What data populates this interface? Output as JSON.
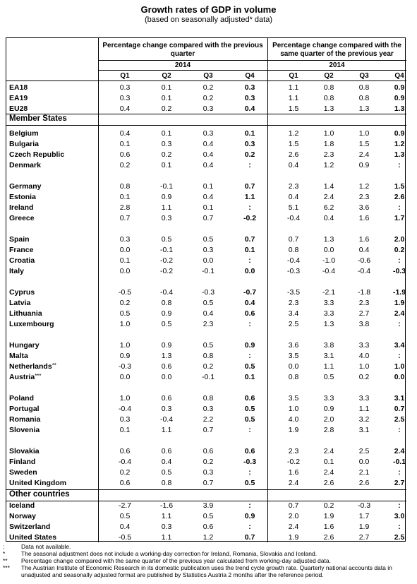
{
  "title": "Growth rates of GDP in volume",
  "subtitle": "(based on seasonally adjusted* data)",
  "header": {
    "group1": "Percentage change compared with the previous quarter",
    "group2": "Percentage change compared with the same quarter of the previous year",
    "year": "2014",
    "quarters": [
      "Q1",
      "Q2",
      "Q3",
      "Q4"
    ]
  },
  "sections": [
    {
      "title": "",
      "groups": [
        [
          {
            "name": "EA18",
            "qq": [
              "0.3",
              "0.1",
              "0.2",
              "0.3"
            ],
            "yy": [
              "1.1",
              "0.8",
              "0.8",
              "0.9"
            ]
          },
          {
            "name": "EA19",
            "qq": [
              "0.3",
              "0.1",
              "0.2",
              "0.3"
            ],
            "yy": [
              "1.1",
              "0.8",
              "0.8",
              "0.9"
            ]
          },
          {
            "name": "EU28",
            "qq": [
              "0.4",
              "0.2",
              "0.3",
              "0.4"
            ],
            "yy": [
              "1.5",
              "1.3",
              "1.3",
              "1.3"
            ]
          }
        ]
      ]
    },
    {
      "title": "Member States",
      "groups": [
        [
          {
            "name": "Belgium",
            "qq": [
              "0.4",
              "0.1",
              "0.3",
              "0.1"
            ],
            "yy": [
              "1.2",
              "1.0",
              "1.0",
              "0.9"
            ]
          },
          {
            "name": "Bulgaria",
            "qq": [
              "0.1",
              "0.3",
              "0.4",
              "0.3"
            ],
            "yy": [
              "1.5",
              "1.8",
              "1.5",
              "1.2"
            ]
          },
          {
            "name": "Czech Republic",
            "qq": [
              "0.6",
              "0.2",
              "0.4",
              "0.2"
            ],
            "yy": [
              "2.6",
              "2.3",
              "2.4",
              "1.3"
            ]
          },
          {
            "name": "Denmark",
            "qq": [
              "0.2",
              "0.1",
              "0.4",
              ":"
            ],
            "yy": [
              "0.4",
              "1.2",
              "0.9",
              ":"
            ]
          }
        ],
        [
          {
            "name": "Germany",
            "qq": [
              "0.8",
              "-0.1",
              "0.1",
              "0.7"
            ],
            "yy": [
              "2.3",
              "1.4",
              "1.2",
              "1.5"
            ]
          },
          {
            "name": "Estonia",
            "qq": [
              "0.1",
              "0.9",
              "0.4",
              "1.1"
            ],
            "yy": [
              "0.4",
              "2.4",
              "2.3",
              "2.6"
            ]
          },
          {
            "name": "Ireland",
            "qq": [
              "2.8",
              "1.1",
              "0.1",
              ":"
            ],
            "yy": [
              "5.1",
              "6.2",
              "3.6",
              ":"
            ]
          },
          {
            "name": "Greece",
            "qq": [
              "0.7",
              "0.3",
              "0.7",
              "-0.2"
            ],
            "yy": [
              "-0.4",
              "0.4",
              "1.6",
              "1.7"
            ]
          }
        ],
        [
          {
            "name": "Spain",
            "qq": [
              "0.3",
              "0.5",
              "0.5",
              "0.7"
            ],
            "yy": [
              "0.7",
              "1.3",
              "1.6",
              "2.0"
            ]
          },
          {
            "name": "France",
            "qq": [
              "0.0",
              "-0.1",
              "0.3",
              "0.1"
            ],
            "yy": [
              "0.8",
              "0.0",
              "0.4",
              "0.2"
            ]
          },
          {
            "name": "Croatia",
            "qq": [
              "0.1",
              "-0.2",
              "0.0",
              ":"
            ],
            "yy": [
              "-0.4",
              "-1.0",
              "-0.6",
              ":"
            ]
          },
          {
            "name": "Italy",
            "qq": [
              "0.0",
              "-0.2",
              "-0.1",
              "0.0"
            ],
            "yy": [
              "-0.3",
              "-0.4",
              "-0.4",
              "-0.3"
            ]
          }
        ],
        [
          {
            "name": "Cyprus",
            "qq": [
              "-0.5",
              "-0.4",
              "-0.3",
              "-0.7"
            ],
            "yy": [
              "-3.5",
              "-2.1",
              "-1.8",
              "-1.9"
            ]
          },
          {
            "name": "Latvia",
            "qq": [
              "0.2",
              "0.8",
              "0.5",
              "0.4"
            ],
            "yy": [
              "2.3",
              "3.3",
              "2.3",
              "1.9"
            ]
          },
          {
            "name": "Lithuania",
            "qq": [
              "0.5",
              "0.9",
              "0.4",
              "0.6"
            ],
            "yy": [
              "3.4",
              "3.3",
              "2.7",
              "2.4"
            ]
          },
          {
            "name": "Luxembourg",
            "qq": [
              "1.0",
              "0.5",
              "2.3",
              ":"
            ],
            "yy": [
              "2.5",
              "1.3",
              "3.8",
              ":"
            ]
          }
        ],
        [
          {
            "name": "Hungary",
            "qq": [
              "1.0",
              "0.9",
              "0.5",
              "0.9"
            ],
            "yy": [
              "3.6",
              "3.8",
              "3.3",
              "3.4"
            ]
          },
          {
            "name": "Malta",
            "qq": [
              "0.9",
              "1.3",
              "0.8",
              ":"
            ],
            "yy": [
              "3.5",
              "3.1",
              "4.0",
              ":"
            ]
          },
          {
            "name": "Netherlands",
            "mark": "**",
            "qq": [
              "-0.3",
              "0.6",
              "0.2",
              "0.5"
            ],
            "yy": [
              "0.0",
              "1.1",
              "1.0",
              "1.0"
            ]
          },
          {
            "name": "Austria",
            "mark": "***",
            "qq": [
              "0.0",
              "0.0",
              "-0.1",
              "0.1"
            ],
            "yy": [
              "0.8",
              "0.5",
              "0.2",
              "0.0"
            ]
          }
        ],
        [
          {
            "name": "Poland",
            "qq": [
              "1.0",
              "0.6",
              "0.8",
              "0.6"
            ],
            "yy": [
              "3.5",
              "3.3",
              "3.3",
              "3.1"
            ]
          },
          {
            "name": "Portugal",
            "qq": [
              "-0.4",
              "0.3",
              "0.3",
              "0.5"
            ],
            "yy": [
              "1.0",
              "0.9",
              "1.1",
              "0.7"
            ]
          },
          {
            "name": "Romania",
            "qq": [
              "0.3",
              "-0.4",
              "2.2",
              "0.5"
            ],
            "yy": [
              "4.0",
              "2.0",
              "3.2",
              "2.5"
            ]
          },
          {
            "name": "Slovenia",
            "qq": [
              "0.1",
              "1.1",
              "0.7",
              ":"
            ],
            "yy": [
              "1.9",
              "2.8",
              "3.1",
              ":"
            ]
          }
        ],
        [
          {
            "name": "Slovakia",
            "qq": [
              "0.6",
              "0.6",
              "0.6",
              "0.6"
            ],
            "yy": [
              "2.3",
              "2.4",
              "2.5",
              "2.4"
            ]
          },
          {
            "name": "Finland",
            "qq": [
              "-0.4",
              "0.4",
              "0.2",
              "-0.3"
            ],
            "yy": [
              "-0.2",
              "0.1",
              "0.0",
              "-0.1"
            ]
          },
          {
            "name": "Sweden",
            "qq": [
              "0.2",
              "0.5",
              "0.3",
              ":"
            ],
            "yy": [
              "1.6",
              "2.4",
              "2.1",
              ":"
            ]
          },
          {
            "name": "United Kingdom",
            "qq": [
              "0.6",
              "0.8",
              "0.7",
              "0.5"
            ],
            "yy": [
              "2.4",
              "2.6",
              "2.6",
              "2.7"
            ]
          }
        ]
      ]
    },
    {
      "title": "Other countries",
      "groups": [
        [
          {
            "name": "Iceland",
            "qq": [
              "-2.7",
              "-1.6",
              "3.9",
              ":"
            ],
            "yy": [
              "0.7",
              "0.2",
              "-0.3",
              ":"
            ]
          },
          {
            "name": "Norway",
            "qq": [
              "0.5",
              "1.1",
              "0.5",
              "0.9"
            ],
            "yy": [
              "2.0",
              "1.9",
              "1.7",
              "3.0"
            ]
          },
          {
            "name": "Switzerland",
            "qq": [
              "0.4",
              "0.3",
              "0.6",
              ":"
            ],
            "yy": [
              "2.4",
              "1.6",
              "1.9",
              ":"
            ]
          },
          {
            "name": "United States",
            "qq": [
              "-0.5",
              "1.1",
              "1.2",
              "0.7"
            ],
            "yy": [
              "1.9",
              "2.6",
              "2.7",
              "2.5"
            ]
          }
        ]
      ]
    }
  ],
  "notes": [
    {
      "mark": ":",
      "text": "Data not available."
    },
    {
      "mark": "*",
      "text": "The seasonal adjustment does not include a working-day correction for Ireland, Romania, Slovakia and Iceland."
    },
    {
      "mark": "**",
      "text": "Percentage change compared with the same quarter of the previous year calculated from working-day adjusted data."
    },
    {
      "mark": "***",
      "text": "The Austrian Institute of Economic Research in its domestic publication uses the trend cycle growth rate. Quarterly national accounts data in unadjusted and seasonally adjusted format are published by Statistics Austria 2 months after the reference period."
    }
  ]
}
